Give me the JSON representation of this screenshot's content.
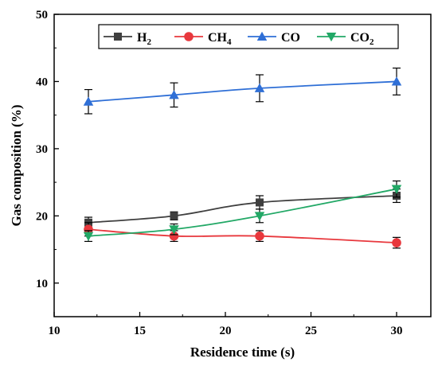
{
  "chart_data": {
    "type": "line",
    "xlabel": "Residence time (s)",
    "ylabel": "Gas composition (%)",
    "xlim": [
      10,
      32
    ],
    "ylim": [
      5,
      50
    ],
    "xticks": [
      10,
      15,
      20,
      25,
      30
    ],
    "yticks": [
      10,
      20,
      30,
      40,
      50
    ],
    "legend_position": "top",
    "x": [
      12,
      17,
      22,
      30
    ],
    "series": [
      {
        "name": "H2",
        "label_main": "H",
        "label_sub": "2",
        "color": "#3f3f3f",
        "marker": "square",
        "values": [
          19,
          20,
          22,
          23
        ],
        "errors": [
          0.8,
          0.6,
          1.0,
          1.0
        ]
      },
      {
        "name": "CH4",
        "label_main": "CH",
        "label_sub": "4",
        "color": "#e8383d",
        "marker": "circle",
        "values": [
          18,
          17,
          17,
          16
        ],
        "errors": [
          1.0,
          0.8,
          0.8,
          0.8
        ]
      },
      {
        "name": "CO",
        "label_main": "CO",
        "label_sub": "",
        "color": "#2f6fd6",
        "marker": "triangle-up",
        "values": [
          37,
          38,
          39,
          40
        ],
        "errors": [
          1.8,
          1.8,
          2.0,
          2.0
        ]
      },
      {
        "name": "CO2",
        "label_main": "CO",
        "label_sub": "2",
        "color": "#22a866",
        "marker": "triangle-down",
        "values": [
          17,
          18,
          20,
          24
        ],
        "errors": [
          0.8,
          0.8,
          1.0,
          1.2
        ]
      }
    ]
  }
}
